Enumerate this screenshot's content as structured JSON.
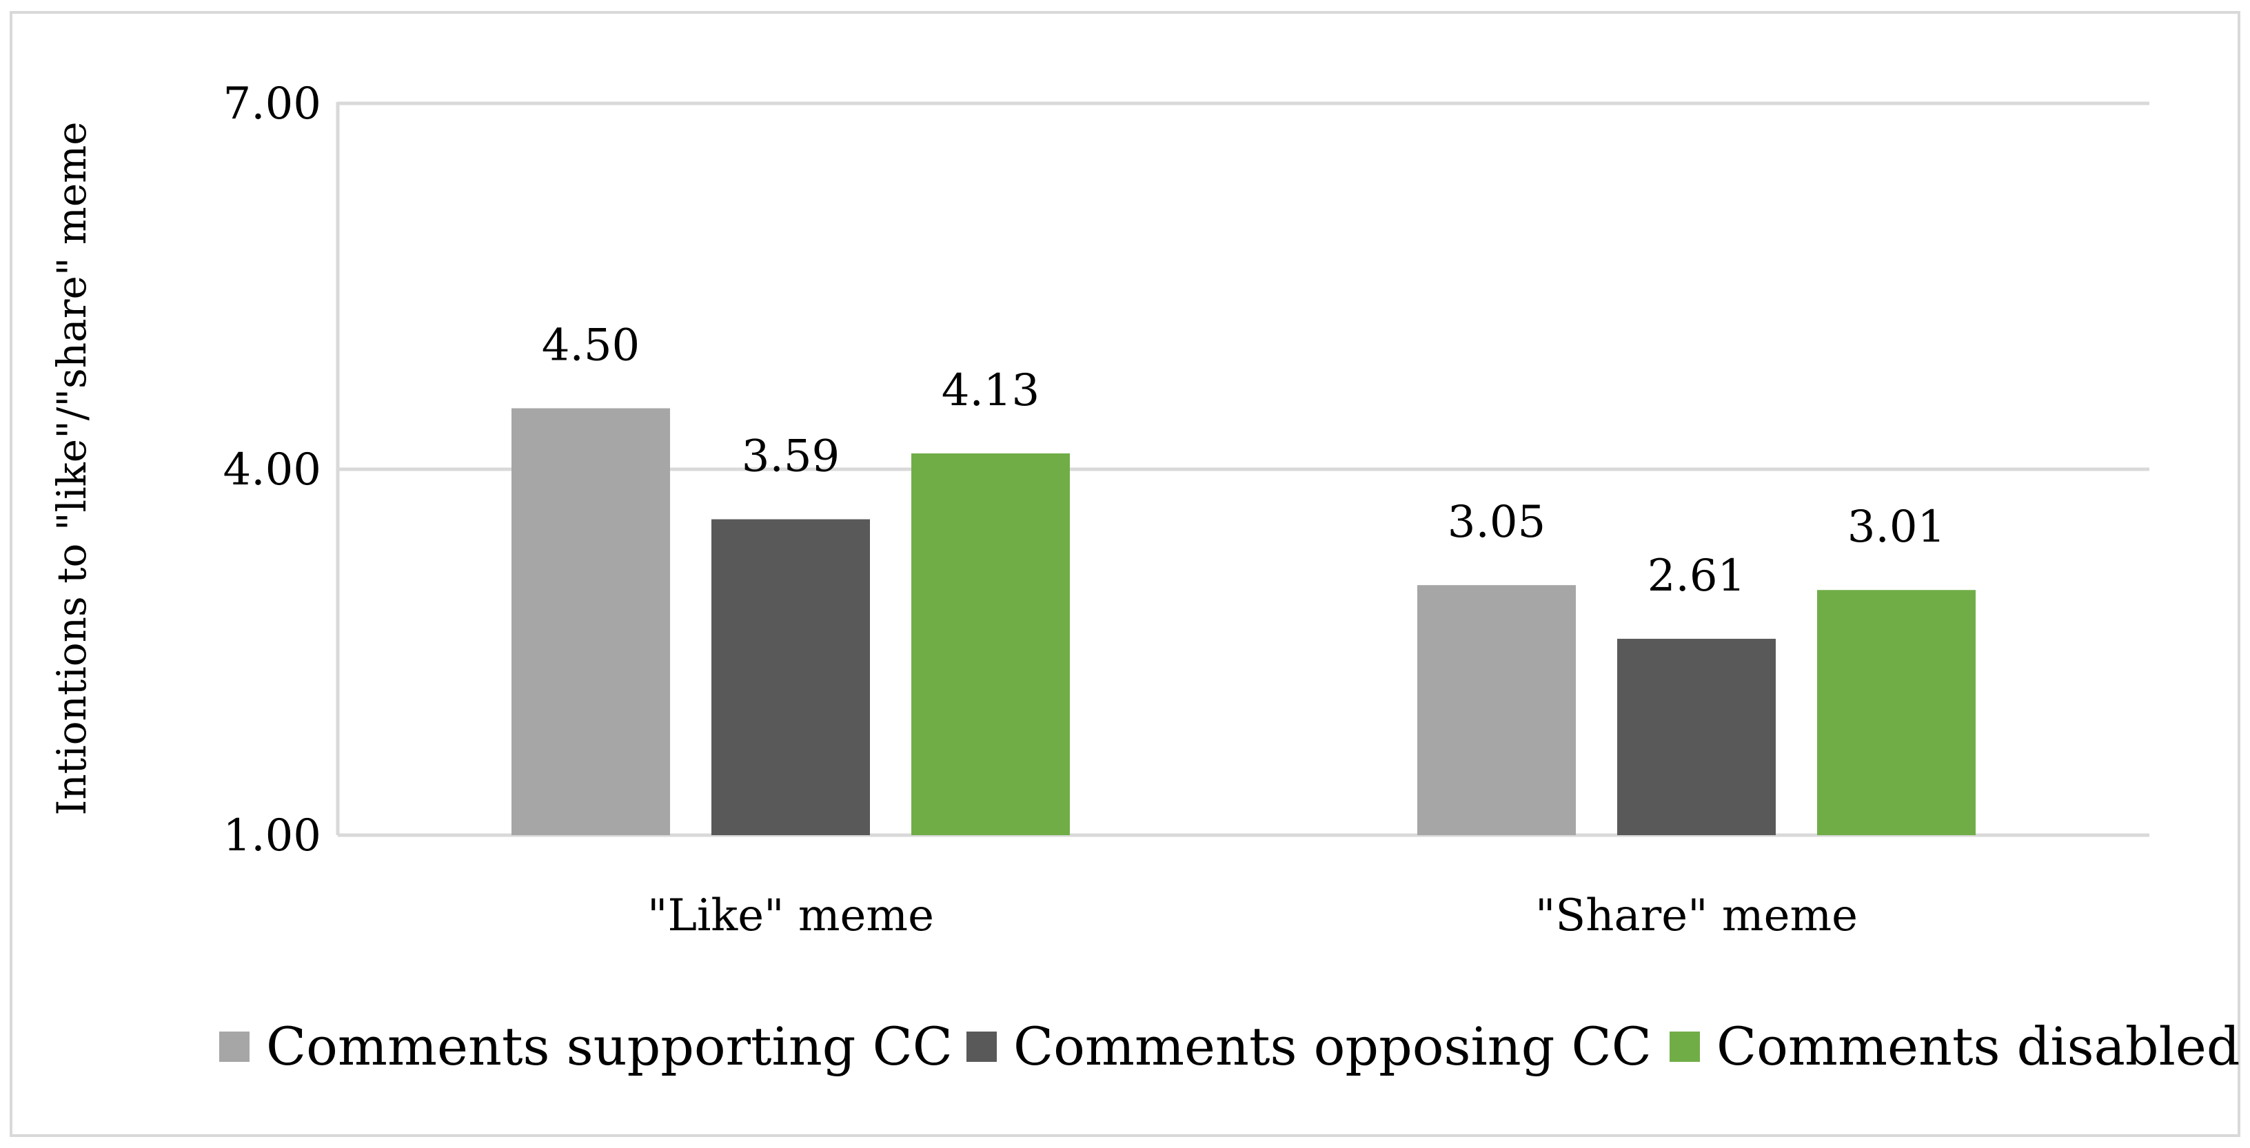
{
  "chart_data": {
    "type": "bar",
    "title": "",
    "xlabel": "",
    "ylabel": "Intiontions to \"like\"/\"share\" meme",
    "ylim": [
      1,
      7
    ],
    "yticks": [
      1,
      4,
      7
    ],
    "ytick_labels": [
      "1.00",
      "4.00",
      "7.00"
    ],
    "grid": true,
    "legend_position": "bottom",
    "categories": [
      "\"Like\" meme",
      "\"Share\" meme"
    ],
    "series": [
      {
        "name": "Comments supporting CC",
        "values": [
          4.5,
          3.05
        ],
        "labels": [
          "4.50",
          "3.05"
        ],
        "color": "#a6a6a6"
      },
      {
        "name": "Comments opposing CC",
        "values": [
          3.59,
          2.61
        ],
        "labels": [
          "3.59",
          "2.61"
        ],
        "color": "#595959"
      },
      {
        "name": "Comments disabled",
        "values": [
          4.13,
          3.01
        ],
        "labels": [
          "4.13",
          "3.01"
        ],
        "color": "#70ad47"
      }
    ]
  }
}
